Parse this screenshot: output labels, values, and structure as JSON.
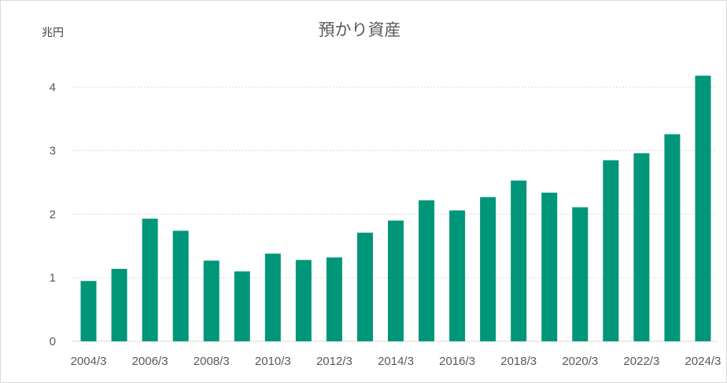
{
  "chart_data": {
    "type": "bar",
    "title": "預かり資産",
    "ylabel": "兆円",
    "xlabel": "",
    "color": "#009679",
    "ylim": [
      0,
      4.3
    ],
    "yticks": [
      0,
      1,
      2,
      3,
      4
    ],
    "grid": true,
    "legend": "none",
    "categories": [
      "2004/3",
      "2005/3",
      "2006/3",
      "2007/3",
      "2008/3",
      "2009/3",
      "2010/3",
      "2011/3",
      "2012/3",
      "2013/3",
      "2014/3",
      "2015/3",
      "2016/3",
      "2017/3",
      "2018/3",
      "2019/3",
      "2020/3",
      "2021/3",
      "2022/3",
      "2023/3",
      "2024/3"
    ],
    "xtick_labels": [
      "2004/3",
      "",
      "2006/3",
      "",
      "2008/3",
      "",
      "2010/3",
      "",
      "2012/3",
      "",
      "2014/3",
      "",
      "2016/3",
      "",
      "2018/3",
      "",
      "2020/3",
      "",
      "2022/3",
      "",
      "2024/3"
    ],
    "values": [
      0.95,
      1.14,
      1.93,
      1.74,
      1.27,
      1.1,
      1.38,
      1.28,
      1.32,
      1.71,
      1.9,
      2.22,
      2.06,
      2.27,
      2.53,
      2.34,
      2.11,
      2.85,
      2.96,
      3.26,
      4.18
    ]
  }
}
